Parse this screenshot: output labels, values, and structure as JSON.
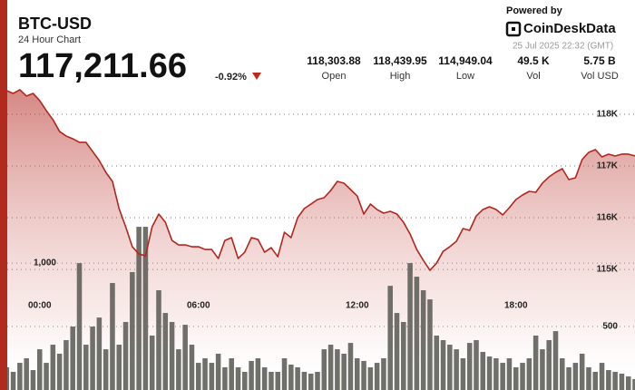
{
  "header": {
    "symbol": "BTC-USD",
    "subtitle": "24 Hour Chart",
    "price": "117,211.66",
    "change": "-0.92%",
    "stats": [
      {
        "value": "118,303.88",
        "label": "Open"
      },
      {
        "value": "118,439.95",
        "label": "High"
      },
      {
        "value": "114,949.04",
        "label": "Low"
      },
      {
        "value": "49.5 K",
        "label": "Vol"
      },
      {
        "value": "5.75 B",
        "label": "Vol USD"
      }
    ],
    "powered_by": "Powered by",
    "brand": "CoinDeskData",
    "timestamp": "25 Jul 2025 22:32 (GMT)"
  },
  "chart_data": {
    "type": "line",
    "x": [
      -1.5,
      -1.25,
      -1,
      -0.75,
      -0.5,
      -0.25,
      0,
      0.25,
      0.5,
      0.75,
      1,
      1.25,
      1.5,
      1.75,
      2,
      2.25,
      2.5,
      2.75,
      3,
      3.25,
      3.5,
      3.75,
      4,
      4.25,
      4.5,
      4.75,
      5,
      5.25,
      5.5,
      5.75,
      6,
      6.25,
      6.5,
      6.75,
      7,
      7.25,
      7.5,
      7.75,
      8,
      8.25,
      8.5,
      8.75,
      9,
      9.25,
      9.5,
      9.75,
      10,
      10.25,
      10.5,
      10.75,
      11,
      11.25,
      11.5,
      11.75,
      12,
      12.25,
      12.5,
      12.75,
      13,
      13.25,
      13.5,
      13.75,
      14,
      14.25,
      14.5,
      14.75,
      15,
      15.25,
      15.5,
      15.75,
      16,
      16.25,
      16.5,
      16.75,
      17,
      17.25,
      17.5,
      17.75,
      18,
      18.25,
      18.5,
      18.75,
      19,
      19.25,
      19.5,
      19.75,
      20,
      20.25,
      20.5,
      20.75,
      21,
      21.25,
      21.5,
      21.75,
      22,
      22.25,
      22.5
    ],
    "series": [
      {
        "color": "#b3261e",
        "values": [
          118456,
          118456,
          118403,
          118474,
          118351,
          118403,
          118263,
          118070,
          117895,
          117667,
          117579,
          117526,
          117456,
          117456,
          117281,
          117105,
          116877,
          116702,
          116176,
          115825,
          115439,
          115298,
          115263,
          115825,
          116070,
          115912,
          115561,
          115474,
          115474,
          115439,
          115439,
          115386,
          115386,
          115211,
          115561,
          115614,
          115211,
          115333,
          115614,
          115579,
          115333,
          115421,
          115246,
          115719,
          115614,
          116000,
          116176,
          116263,
          116351,
          116386,
          116526,
          116702,
          116667,
          116544,
          116421,
          116070,
          116263,
          116158,
          116088,
          116123,
          116070,
          115912,
          115684,
          115386,
          115175,
          114983,
          115123,
          115351,
          115439,
          115544,
          115790,
          115755,
          116035,
          116158,
          116211,
          116158,
          116053,
          116193,
          116351,
          116439,
          116509,
          116491,
          116667,
          116789,
          116877,
          116947,
          116737,
          116772,
          117123,
          117263,
          117316,
          117175,
          117228,
          117193,
          117228,
          117228,
          117193
        ]
      },
      {
        "type": "bar",
        "axis": "y2",
        "color": "#5c5c57",
        "values": [
          143,
          179,
          143,
          214,
          250,
          157,
          321,
          214,
          357,
          286,
          393,
          500,
          1000,
          357,
          500,
          571,
          321,
          843,
          357,
          536,
          929,
          1286,
          1286,
          429,
          786,
          607,
          536,
          321,
          514,
          357,
          214,
          250,
          214,
          286,
          179,
          250,
          179,
          143,
          229,
          250,
          179,
          143,
          143,
          250,
          200,
          179,
          143,
          129,
          143,
          321,
          357,
          321,
          286,
          371,
          250,
          229,
          179,
          214,
          250,
          821,
          607,
          536,
          1000,
          893,
          786,
          714,
          429,
          393,
          357,
          321,
          250,
          371,
          393,
          300,
          264,
          250,
          214,
          250,
          179,
          214,
          250,
          429,
          321,
          393,
          464,
          250,
          179,
          214,
          286,
          179,
          143,
          214,
          157,
          143,
          129,
          107,
          86
        ]
      }
    ],
    "xlim": [
      -1.5,
      22.5
    ],
    "xticks": [
      {
        "value": 0,
        "label": "00:00"
      },
      {
        "value": 6,
        "label": "06:00"
      },
      {
        "value": 12,
        "label": "12:00"
      },
      {
        "value": 18,
        "label": "18:00"
      }
    ],
    "ylim": [
      112670,
      118630
    ],
    "yticks": [
      {
        "value": 115000,
        "label": "115K"
      },
      {
        "value": 116000,
        "label": "116K"
      },
      {
        "value": 117000,
        "label": "117K"
      },
      {
        "value": 118000,
        "label": "118K"
      }
    ],
    "y2lim": [
      0,
      2430
    ],
    "y2ticks": [
      500,
      {
        "value": 1000,
        "label": "1,000"
      }
    ],
    "grid": true
  }
}
